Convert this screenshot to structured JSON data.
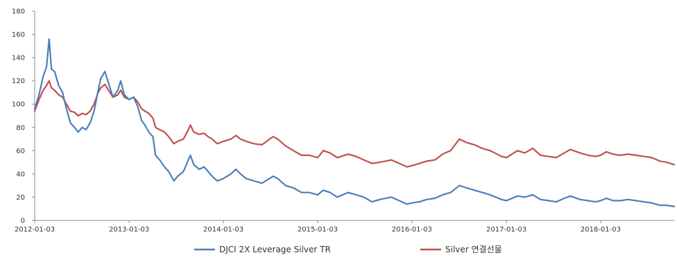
{
  "chart_data": {
    "type": "line",
    "title": "",
    "xlabel": "",
    "ylabel": "",
    "ylim": [
      0,
      180
    ],
    "yticks": [
      0,
      20,
      40,
      60,
      80,
      100,
      120,
      140,
      160,
      180
    ],
    "xlim": [
      "2012-01-03",
      "2018-10-15"
    ],
    "xticks": [
      "2012-01-03",
      "2013-01-03",
      "2014-01-03",
      "2015-01-03",
      "2016-01-03",
      "2017-01-03",
      "2018-01-03"
    ],
    "grid": false,
    "legend_position": "bottom",
    "series": [
      {
        "name": "DJCI 2X Leverage Silver TR",
        "color": "#4a7ebb",
        "points": [
          [
            "2012-01-03",
            96
          ],
          [
            "2012-01-20",
            108
          ],
          [
            "2012-02-05",
            124
          ],
          [
            "2012-02-18",
            132
          ],
          [
            "2012-02-28",
            156
          ],
          [
            "2012-03-08",
            130
          ],
          [
            "2012-03-20",
            128
          ],
          [
            "2012-04-05",
            116
          ],
          [
            "2012-04-20",
            110
          ],
          [
            "2012-05-05",
            96
          ],
          [
            "2012-05-20",
            84
          ],
          [
            "2012-06-05",
            80
          ],
          [
            "2012-06-20",
            76
          ],
          [
            "2012-07-05",
            80
          ],
          [
            "2012-07-20",
            78
          ],
          [
            "2012-08-05",
            84
          ],
          [
            "2012-08-20",
            94
          ],
          [
            "2012-09-05",
            112
          ],
          [
            "2012-09-15",
            122
          ],
          [
            "2012-10-01",
            128
          ],
          [
            "2012-10-15",
            118
          ],
          [
            "2012-11-01",
            106
          ],
          [
            "2012-11-20",
            112
          ],
          [
            "2012-12-01",
            120
          ],
          [
            "2012-12-15",
            108
          ],
          [
            "2013-01-03",
            104
          ],
          [
            "2013-01-20",
            106
          ],
          [
            "2013-02-05",
            98
          ],
          [
            "2013-02-20",
            86
          ],
          [
            "2013-03-05",
            82
          ],
          [
            "2013-03-20",
            76
          ],
          [
            "2013-04-05",
            72
          ],
          [
            "2013-04-15",
            56
          ],
          [
            "2013-05-01",
            52
          ],
          [
            "2013-05-20",
            46
          ],
          [
            "2013-06-05",
            42
          ],
          [
            "2013-06-25",
            34
          ],
          [
            "2013-07-10",
            38
          ],
          [
            "2013-08-01",
            42
          ],
          [
            "2013-08-20",
            52
          ],
          [
            "2013-08-28",
            56
          ],
          [
            "2013-09-10",
            48
          ],
          [
            "2013-10-01",
            44
          ],
          [
            "2013-10-20",
            46
          ],
          [
            "2013-11-05",
            42
          ],
          [
            "2013-11-20",
            38
          ],
          [
            "2013-12-10",
            34
          ],
          [
            "2014-01-03",
            36
          ],
          [
            "2014-02-01",
            40
          ],
          [
            "2014-02-20",
            44
          ],
          [
            "2014-03-10",
            40
          ],
          [
            "2014-04-01",
            36
          ],
          [
            "2014-05-01",
            34
          ],
          [
            "2014-06-01",
            32
          ],
          [
            "2014-07-01",
            36
          ],
          [
            "2014-07-15",
            38
          ],
          [
            "2014-08-01",
            36
          ],
          [
            "2014-09-01",
            30
          ],
          [
            "2014-10-01",
            28
          ],
          [
            "2014-11-01",
            24
          ],
          [
            "2014-12-01",
            24
          ],
          [
            "2015-01-03",
            22
          ],
          [
            "2015-01-25",
            26
          ],
          [
            "2015-02-20",
            24
          ],
          [
            "2015-03-20",
            20
          ],
          [
            "2015-05-01",
            24
          ],
          [
            "2015-06-01",
            22
          ],
          [
            "2015-07-01",
            20
          ],
          [
            "2015-08-01",
            16
          ],
          [
            "2015-09-01",
            18
          ],
          [
            "2015-10-15",
            20
          ],
          [
            "2015-11-15",
            17
          ],
          [
            "2015-12-15",
            14
          ],
          [
            "2016-01-03",
            15
          ],
          [
            "2016-02-01",
            16
          ],
          [
            "2016-03-01",
            18
          ],
          [
            "2016-04-01",
            19
          ],
          [
            "2016-05-01",
            22
          ],
          [
            "2016-06-01",
            24
          ],
          [
            "2016-07-05",
            30
          ],
          [
            "2016-08-01",
            28
          ],
          [
            "2016-09-01",
            26
          ],
          [
            "2016-10-01",
            24
          ],
          [
            "2016-11-01",
            22
          ],
          [
            "2016-12-15",
            18
          ],
          [
            "2017-01-03",
            17
          ],
          [
            "2017-02-15",
            21
          ],
          [
            "2017-03-15",
            20
          ],
          [
            "2017-04-15",
            22
          ],
          [
            "2017-05-15",
            18
          ],
          [
            "2017-06-15",
            17
          ],
          [
            "2017-07-15",
            16
          ],
          [
            "2017-08-15",
            19
          ],
          [
            "2017-09-08",
            21
          ],
          [
            "2017-10-15",
            18
          ],
          [
            "2017-11-15",
            17
          ],
          [
            "2017-12-15",
            16
          ],
          [
            "2018-01-03",
            17
          ],
          [
            "2018-01-25",
            19
          ],
          [
            "2018-02-20",
            17
          ],
          [
            "2018-03-20",
            17
          ],
          [
            "2018-04-20",
            18
          ],
          [
            "2018-05-20",
            17
          ],
          [
            "2018-06-20",
            16
          ],
          [
            "2018-07-20",
            15
          ],
          [
            "2018-08-20",
            13
          ],
          [
            "2018-09-15",
            13
          ],
          [
            "2018-10-15",
            12
          ]
        ]
      },
      {
        "name": "Silver 연결선물",
        "color": "#c0504d",
        "points": [
          [
            "2012-01-03",
            94
          ],
          [
            "2012-01-20",
            104
          ],
          [
            "2012-02-05",
            112
          ],
          [
            "2012-02-18",
            116
          ],
          [
            "2012-02-28",
            120
          ],
          [
            "2012-03-08",
            114
          ],
          [
            "2012-03-20",
            112
          ],
          [
            "2012-04-05",
            108
          ],
          [
            "2012-04-20",
            106
          ],
          [
            "2012-05-05",
            100
          ],
          [
            "2012-05-20",
            94
          ],
          [
            "2012-06-05",
            93
          ],
          [
            "2012-06-20",
            90
          ],
          [
            "2012-07-05",
            92
          ],
          [
            "2012-07-20",
            91
          ],
          [
            "2012-08-05",
            94
          ],
          [
            "2012-08-20",
            100
          ],
          [
            "2012-09-05",
            110
          ],
          [
            "2012-09-15",
            114
          ],
          [
            "2012-10-01",
            117
          ],
          [
            "2012-10-15",
            112
          ],
          [
            "2012-11-01",
            106
          ],
          [
            "2012-11-20",
            108
          ],
          [
            "2012-12-01",
            112
          ],
          [
            "2012-12-15",
            106
          ],
          [
            "2013-01-03",
            104
          ],
          [
            "2013-01-20",
            106
          ],
          [
            "2013-02-05",
            102
          ],
          [
            "2013-02-20",
            96
          ],
          [
            "2013-03-05",
            94
          ],
          [
            "2013-03-20",
            92
          ],
          [
            "2013-04-05",
            88
          ],
          [
            "2013-04-15",
            80
          ],
          [
            "2013-05-01",
            78
          ],
          [
            "2013-05-20",
            76
          ],
          [
            "2013-06-05",
            72
          ],
          [
            "2013-06-25",
            66
          ],
          [
            "2013-07-10",
            68
          ],
          [
            "2013-08-01",
            70
          ],
          [
            "2013-08-20",
            78
          ],
          [
            "2013-08-28",
            82
          ],
          [
            "2013-09-10",
            76
          ],
          [
            "2013-10-01",
            74
          ],
          [
            "2013-10-20",
            75
          ],
          [
            "2013-11-05",
            72
          ],
          [
            "2013-11-20",
            70
          ],
          [
            "2013-12-10",
            66
          ],
          [
            "2014-01-03",
            68
          ],
          [
            "2014-02-01",
            70
          ],
          [
            "2014-02-20",
            73
          ],
          [
            "2014-03-10",
            70
          ],
          [
            "2014-04-01",
            68
          ],
          [
            "2014-05-01",
            66
          ],
          [
            "2014-06-01",
            65
          ],
          [
            "2014-07-01",
            70
          ],
          [
            "2014-07-15",
            72
          ],
          [
            "2014-08-01",
            70
          ],
          [
            "2014-09-01",
            64
          ],
          [
            "2014-10-01",
            60
          ],
          [
            "2014-11-01",
            56
          ],
          [
            "2014-12-01",
            56
          ],
          [
            "2015-01-03",
            54
          ],
          [
            "2015-01-25",
            60
          ],
          [
            "2015-02-20",
            58
          ],
          [
            "2015-03-20",
            54
          ],
          [
            "2015-05-01",
            57
          ],
          [
            "2015-06-01",
            55
          ],
          [
            "2015-07-01",
            52
          ],
          [
            "2015-08-01",
            49
          ],
          [
            "2015-09-01",
            50
          ],
          [
            "2015-10-15",
            52
          ],
          [
            "2015-11-15",
            49
          ],
          [
            "2015-12-15",
            46
          ],
          [
            "2016-01-03",
            47
          ],
          [
            "2016-02-01",
            49
          ],
          [
            "2016-03-01",
            51
          ],
          [
            "2016-04-01",
            52
          ],
          [
            "2016-05-01",
            57
          ],
          [
            "2016-06-01",
            60
          ],
          [
            "2016-07-05",
            70
          ],
          [
            "2016-08-01",
            67
          ],
          [
            "2016-09-01",
            65
          ],
          [
            "2016-10-01",
            62
          ],
          [
            "2016-11-01",
            60
          ],
          [
            "2016-12-15",
            55
          ],
          [
            "2017-01-03",
            54
          ],
          [
            "2017-02-15",
            60
          ],
          [
            "2017-03-15",
            58
          ],
          [
            "2017-04-15",
            62
          ],
          [
            "2017-05-15",
            56
          ],
          [
            "2017-06-15",
            55
          ],
          [
            "2017-07-15",
            54
          ],
          [
            "2017-08-15",
            58
          ],
          [
            "2017-09-08",
            61
          ],
          [
            "2017-10-15",
            58
          ],
          [
            "2017-11-15",
            56
          ],
          [
            "2017-12-15",
            55
          ],
          [
            "2018-01-03",
            56
          ],
          [
            "2018-01-25",
            59
          ],
          [
            "2018-02-20",
            57
          ],
          [
            "2018-03-20",
            56
          ],
          [
            "2018-04-20",
            57
          ],
          [
            "2018-05-20",
            56
          ],
          [
            "2018-06-20",
            55
          ],
          [
            "2018-07-20",
            54
          ],
          [
            "2018-08-20",
            51
          ],
          [
            "2018-09-15",
            50
          ],
          [
            "2018-10-15",
            48
          ]
        ]
      }
    ]
  }
}
